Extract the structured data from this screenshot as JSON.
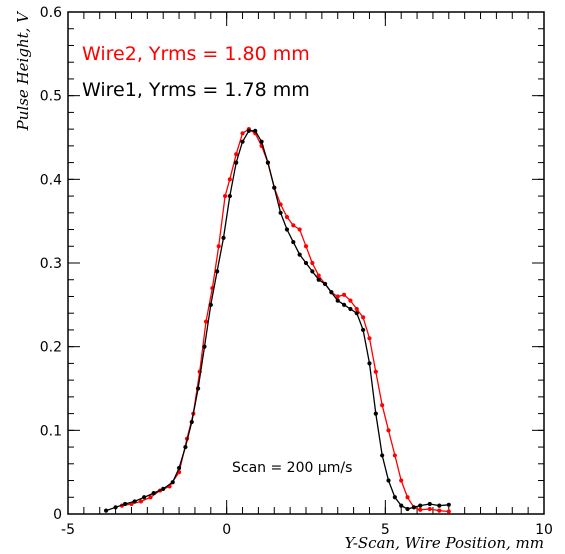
{
  "chart_data": {
    "type": "line",
    "xlabel": "Y-Scan, Wire Position, mm",
    "ylabel": "Pulse Height, V",
    "xlim": [
      -5,
      10
    ],
    "ylim": [
      0,
      0.6
    ],
    "x_ticks": [
      "-5",
      "0",
      "5",
      "10"
    ],
    "y_ticks": [
      "0",
      "0.1",
      "0.2",
      "0.3",
      "0.4",
      "0.5",
      "0.6"
    ],
    "legend": [
      "Wire2, Yrms = 1.80 mm",
      "Wire1, Yrms = 1.78 mm"
    ],
    "annotation": "Scan = 200 μm/s",
    "grid": false,
    "series": [
      {
        "name": "Wire2, Yrms = 1.80 mm",
        "color": "#ff0000",
        "x": [
          -3.3,
          -3.0,
          -2.7,
          -2.4,
          -2.1,
          -1.8,
          -1.5,
          -1.25,
          -1.05,
          -0.85,
          -0.65,
          -0.45,
          -0.25,
          -0.05,
          0.1,
          0.3,
          0.5,
          0.7,
          0.9,
          1.1,
          1.3,
          1.5,
          1.7,
          1.9,
          2.1,
          2.3,
          2.5,
          2.7,
          2.9,
          3.1,
          3.3,
          3.5,
          3.7,
          3.9,
          4.1,
          4.3,
          4.5,
          4.7,
          4.9,
          5.1,
          5.3,
          5.5,
          5.7,
          5.9,
          6.1,
          6.4,
          6.7,
          7.0
        ],
        "y": [
          0.01,
          0.012,
          0.015,
          0.02,
          0.028,
          0.033,
          0.05,
          0.09,
          0.12,
          0.17,
          0.23,
          0.27,
          0.32,
          0.38,
          0.4,
          0.43,
          0.455,
          0.46,
          0.455,
          0.44,
          0.42,
          0.39,
          0.37,
          0.355,
          0.345,
          0.34,
          0.32,
          0.3,
          0.285,
          0.275,
          0.265,
          0.26,
          0.262,
          0.255,
          0.245,
          0.235,
          0.21,
          0.17,
          0.13,
          0.1,
          0.07,
          0.04,
          0.02,
          0.008,
          0.005,
          0.006,
          0.004,
          0.003
        ]
      },
      {
        "name": "Wire1, Yrms = 1.78 mm",
        "color": "#000000",
        "x": [
          -3.8,
          -3.5,
          -3.2,
          -2.9,
          -2.6,
          -2.3,
          -2.0,
          -1.7,
          -1.5,
          -1.3,
          -1.1,
          -0.9,
          -0.7,
          -0.5,
          -0.3,
          -0.1,
          0.1,
          0.3,
          0.5,
          0.7,
          0.9,
          1.1,
          1.3,
          1.5,
          1.7,
          1.9,
          2.1,
          2.3,
          2.5,
          2.7,
          2.9,
          3.1,
          3.3,
          3.5,
          3.7,
          3.9,
          4.1,
          4.3,
          4.5,
          4.7,
          4.9,
          5.1,
          5.3,
          5.5,
          5.7,
          5.9,
          6.1,
          6.4,
          6.7,
          7.0
        ],
        "y": [
          0.004,
          0.008,
          0.012,
          0.015,
          0.02,
          0.025,
          0.03,
          0.038,
          0.055,
          0.08,
          0.11,
          0.15,
          0.2,
          0.25,
          0.29,
          0.33,
          0.38,
          0.42,
          0.445,
          0.458,
          0.458,
          0.445,
          0.42,
          0.39,
          0.36,
          0.34,
          0.325,
          0.31,
          0.3,
          0.29,
          0.28,
          0.275,
          0.265,
          0.255,
          0.25,
          0.245,
          0.24,
          0.22,
          0.18,
          0.12,
          0.07,
          0.04,
          0.02,
          0.01,
          0.006,
          0.008,
          0.01,
          0.012,
          0.01,
          0.011
        ]
      }
    ]
  }
}
